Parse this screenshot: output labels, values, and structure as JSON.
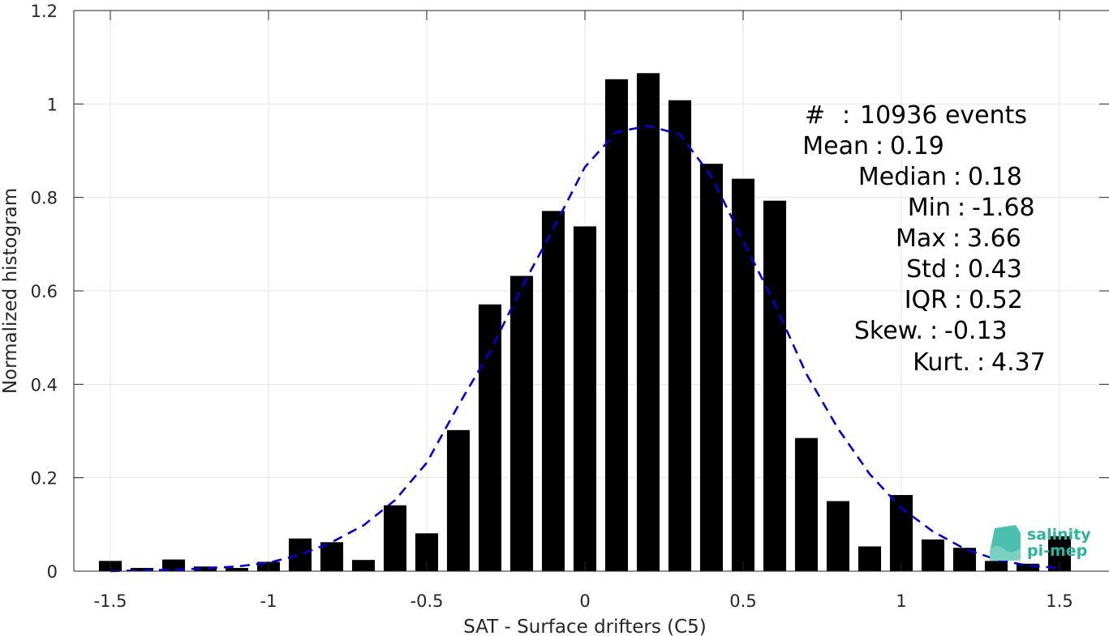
{
  "chart_data": {
    "type": "bar",
    "xlabel": "SAT - Surface drifters (C5)",
    "ylabel": "Normalized histogram",
    "xlim": [
      -1.57,
      1.6
    ],
    "ylim": [
      0,
      1.2
    ],
    "grid": true,
    "x_ticks": [
      -1.5,
      -1,
      -0.5,
      0,
      0.5,
      1,
      1.5
    ],
    "x_tick_labels": [
      "-1.5",
      "-1",
      "-0.5",
      "0",
      "0.5",
      "1",
      "1.5"
    ],
    "y_ticks": [
      0,
      0.2,
      0.4,
      0.6,
      0.8,
      1,
      1.2
    ],
    "y_tick_labels": [
      "0",
      "0.2",
      "0.4",
      "0.6",
      "0.8",
      "1",
      "1.2"
    ],
    "bin_width": 0.1,
    "bar_color": "#000000",
    "bins": [
      -1.5,
      -1.4,
      -1.3,
      -1.2,
      -1.1,
      -1.0,
      -0.9,
      -0.8,
      -0.7,
      -0.6,
      -0.5,
      -0.4,
      -0.3,
      -0.2,
      -0.1,
      0.0,
      0.1,
      0.2,
      0.3,
      0.4,
      0.5,
      0.6,
      0.7,
      0.8,
      0.9,
      1.0,
      1.1,
      1.2,
      1.3,
      1.4,
      1.5
    ],
    "values": [
      0.022,
      0.007,
      0.025,
      0.01,
      0.007,
      0.02,
      0.07,
      0.062,
      0.024,
      0.141,
      0.081,
      0.302,
      0.571,
      0.632,
      0.771,
      0.738,
      1.053,
      1.066,
      1.008,
      0.872,
      0.84,
      0.793,
      0.285,
      0.15,
      0.053,
      0.163,
      0.068,
      0.05,
      0.022,
      0.016,
      0.075
    ],
    "fit_curve": {
      "style": "dashed",
      "color": "#0000dd",
      "x": [
        -1.5,
        -1.4,
        -1.3,
        -1.2,
        -1.1,
        -1.0,
        -0.9,
        -0.8,
        -0.7,
        -0.6,
        -0.5,
        -0.4,
        -0.3,
        -0.2,
        -0.1,
        0.0,
        0.1,
        0.2,
        0.3,
        0.4,
        0.5,
        0.6,
        0.7,
        0.8,
        0.9,
        1.0,
        1.1,
        1.2,
        1.3,
        1.4,
        1.5
      ],
      "y": [
        0.0,
        0.002,
        0.003,
        0.006,
        0.01,
        0.018,
        0.035,
        0.062,
        0.098,
        0.152,
        0.232,
        0.355,
        0.47,
        0.607,
        0.733,
        0.865,
        0.94,
        0.953,
        0.935,
        0.845,
        0.707,
        0.572,
        0.422,
        0.305,
        0.208,
        0.135,
        0.085,
        0.048,
        0.025,
        0.012,
        0.007
      ]
    },
    "annotations": [
      {
        "label": "#",
        "sep": ":",
        "value": "10936 events"
      },
      {
        "label": "Mean",
        "sep": ":",
        "value": "0.19"
      },
      {
        "label": "Median",
        "sep": ":",
        "value": "0.18"
      },
      {
        "label": "Min",
        "sep": ":",
        "value": "-1.68"
      },
      {
        "label": "Max",
        "sep": ":",
        "value": "3.66"
      },
      {
        "label": "Std",
        "sep": ":",
        "value": "0.43"
      },
      {
        "label": "IQR",
        "sep": ":",
        "value": "0.52"
      },
      {
        "label": "Skew.",
        "sep": ":",
        "value": "-0.13"
      },
      {
        "label": "Kurt.",
        "sep": ":",
        "value": "4.37"
      }
    ]
  },
  "logo": {
    "line1": "salinity",
    "line2": "pi-mep",
    "color": "#2bb5a0"
  }
}
